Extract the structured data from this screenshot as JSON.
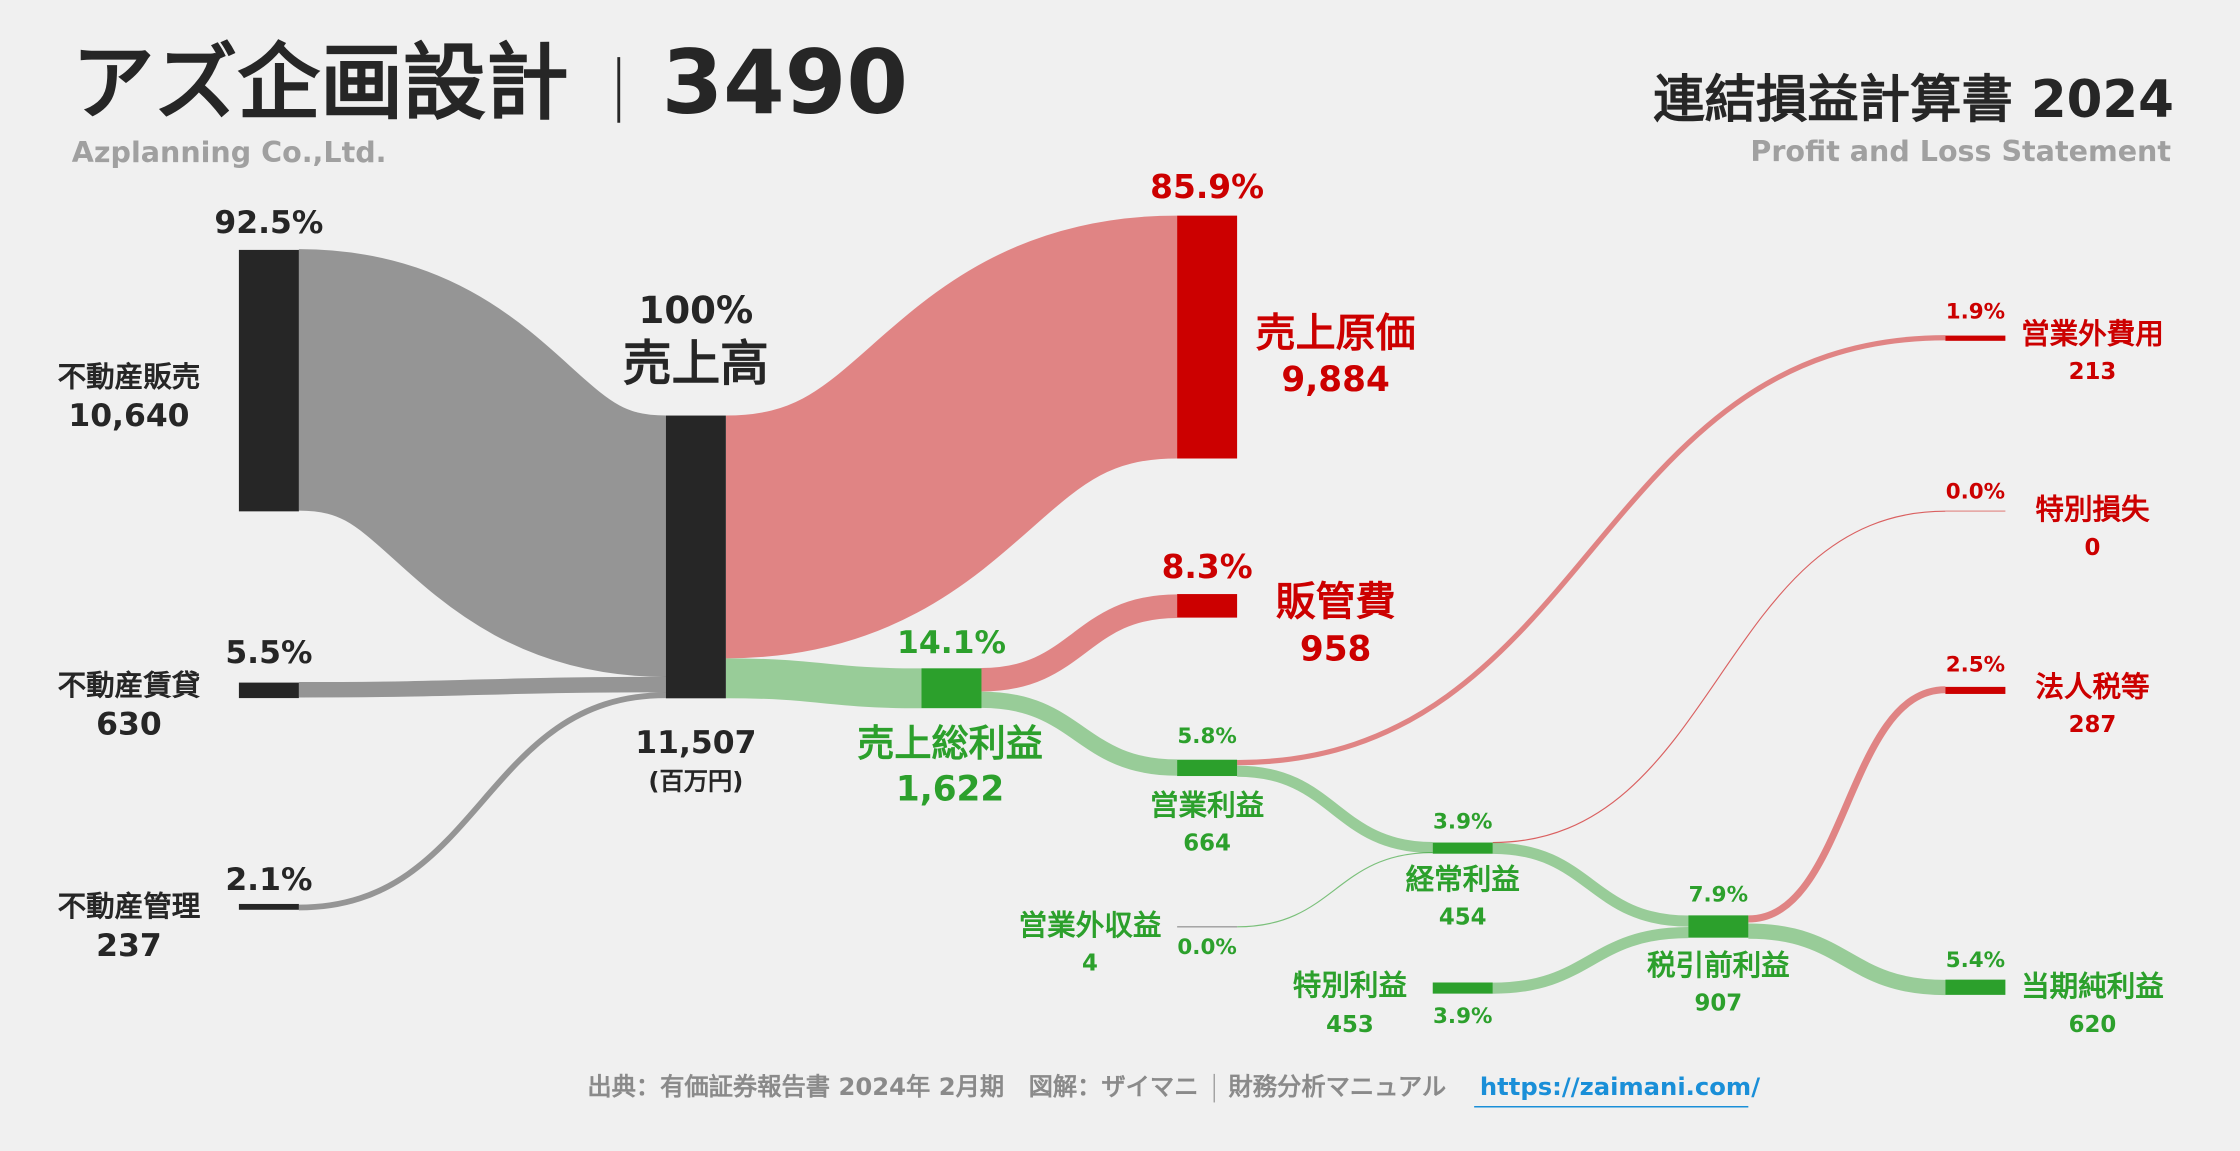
{
  "chart_data": {
    "type": "sankey",
    "title": "アズ企画設計",
    "code": "3490",
    "subtitle": "Azplanning Co.,Ltd.",
    "statement_title": "連結損益計算書 2024",
    "statement_subtitle": "Profit and Loss Statement",
    "unit": "(百万円)",
    "nodes": [
      {
        "name": "不動産販売",
        "value": 10640,
        "value_label": "10,640",
        "share": 92.5,
        "share_label": "92.5%",
        "color": "#262626"
      },
      {
        "name": "不動産賃貸",
        "value": 630,
        "share": 5.5,
        "share_label": "5.5%",
        "color": "#262626"
      },
      {
        "name": "不動産管理",
        "value": 237,
        "share": 2.1,
        "share_label": "2.1%",
        "color": "#262626"
      },
      {
        "name": "売上高",
        "value": 11507,
        "value_label": "11,507",
        "share": 100,
        "share_label": "100%",
        "color": "#262626"
      },
      {
        "name": "売上原価",
        "value": 9884,
        "value_label": "9,884",
        "share": 85.9,
        "share_label": "85.9%",
        "color": "#cc0000"
      },
      {
        "name": "販管費",
        "value": 958,
        "share": 8.3,
        "share_label": "8.3%",
        "color": "#cc0000"
      },
      {
        "name": "売上総利益",
        "value": 1622,
        "value_label": "1,622",
        "share": 14.1,
        "share_label": "14.1%",
        "color": "#2ca02c"
      },
      {
        "name": "営業利益",
        "value": 664,
        "share": 5.8,
        "share_label": "5.8%",
        "color": "#2ca02c"
      },
      {
        "name": "営業外収益",
        "value": 4,
        "share": 0.0,
        "share_label": "0.0%",
        "color": "#2ca02c"
      },
      {
        "name": "経常利益",
        "value": 454,
        "share": 3.9,
        "share_label": "3.9%",
        "color": "#2ca02c"
      },
      {
        "name": "営業外費用",
        "value": 213,
        "share": 1.9,
        "share_label": "1.9%",
        "color": "#cc0000"
      },
      {
        "name": "特別損失",
        "value": 0,
        "share": 0.0,
        "share_label": "0.0%",
        "color": "#cc0000"
      },
      {
        "name": "特別利益",
        "value": 453,
        "share": 3.9,
        "share_label": "3.9%",
        "color": "#2ca02c"
      },
      {
        "name": "税引前利益",
        "value": 907,
        "share": 7.9,
        "share_label": "7.9%",
        "color": "#2ca02c"
      },
      {
        "name": "法人税等",
        "value": 287,
        "share": 2.5,
        "share_label": "2.5%",
        "color": "#cc0000"
      },
      {
        "name": "当期純利益",
        "value": 620,
        "share": 5.4,
        "share_label": "5.4%",
        "color": "#2ca02c"
      }
    ]
  },
  "footer": {
    "source": "出典：有価証券報告書 2024年 2月期",
    "credit": "図解：ザイマニ",
    "site_name": "財務分析マニュアル",
    "url": "https://zaimani.com/"
  }
}
